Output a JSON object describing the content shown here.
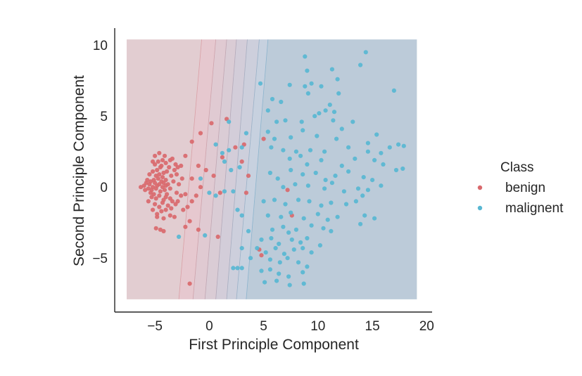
{
  "chart_data": {
    "type": "scatter",
    "title": "",
    "xlabel": "First Principle Component",
    "ylabel": "Second Principle Component",
    "xlim": [
      -8.7,
      20.5
    ],
    "ylim": [
      -8.8,
      11.2
    ],
    "xticks": [
      -5,
      0,
      5,
      10,
      15,
      20
    ],
    "yticks": [
      -5,
      0,
      5,
      10
    ],
    "xtick_labels": [
      "−5",
      "0",
      "5",
      "10",
      "15",
      "20"
    ],
    "ytick_labels": [
      "−5",
      "0",
      "5",
      "10"
    ],
    "grid": false,
    "legend": {
      "title": "Class",
      "placement": "right"
    },
    "decision_region": {
      "x_range": [
        -7.6,
        19.1
      ],
      "y_range": [
        -7.9,
        10.4
      ],
      "class_colors": [
        "#d37b7e",
        "#4aa8c8"
      ],
      "boundary_levels": [
        0.05,
        0.2,
        0.35,
        0.5,
        0.65,
        0.8,
        0.95
      ],
      "boundary_at_y_bottom": [
        -2.8,
        -1.5,
        -0.4,
        0.6,
        1.6,
        2.5,
        3.4
      ],
      "boundary_at_y_top": [
        -0.7,
        0.6,
        1.6,
        2.5,
        3.5,
        4.6,
        5.4
      ],
      "background_color": "#b9c7d6"
    },
    "series": [
      {
        "name": "benign",
        "color": "#d9696c",
        "points": [
          [
            -6.3,
            0.0
          ],
          [
            -6.0,
            0.1
          ],
          [
            -5.8,
            0.3
          ],
          [
            -5.6,
            -0.1
          ],
          [
            -5.5,
            0.2
          ],
          [
            -5.4,
            0.4
          ],
          [
            -5.3,
            -0.2
          ],
          [
            -5.2,
            0.0
          ],
          [
            -5.1,
            0.5
          ],
          [
            -5.0,
            0.3
          ],
          [
            -4.9,
            -0.1
          ],
          [
            -4.8,
            0.1
          ],
          [
            -4.7,
            0.6
          ],
          [
            -4.6,
            0.2
          ],
          [
            -4.5,
            -0.3
          ],
          [
            -4.4,
            0.4
          ],
          [
            -4.3,
            0.0
          ],
          [
            -4.2,
            0.3
          ],
          [
            -4.1,
            -0.2
          ],
          [
            -4.0,
            0.1
          ],
          [
            -5.9,
            -0.2
          ],
          [
            -5.7,
            0.5
          ],
          [
            -5.4,
            -0.4
          ],
          [
            -5.1,
            -0.5
          ],
          [
            -4.9,
            0.8
          ],
          [
            -4.6,
            0.9
          ],
          [
            -4.3,
            0.7
          ],
          [
            -4.0,
            0.5
          ],
          [
            -3.8,
            0.2
          ],
          [
            -3.6,
            -0.1
          ],
          [
            -5.5,
            0.9
          ],
          [
            -5.2,
            1.1
          ],
          [
            -4.8,
            1.2
          ],
          [
            -4.5,
            1.4
          ],
          [
            -4.2,
            1.0
          ],
          [
            -3.9,
            1.1
          ],
          [
            -3.5,
            0.8
          ],
          [
            -3.3,
            0.4
          ],
          [
            -5.0,
            1.6
          ],
          [
            -4.7,
            1.8
          ],
          [
            -4.4,
            1.5
          ],
          [
            -4.0,
            1.7
          ],
          [
            -3.7,
            1.4
          ],
          [
            -3.2,
            1.2
          ],
          [
            -3.0,
            0.9
          ],
          [
            -4.9,
            -0.8
          ],
          [
            -4.6,
            -0.6
          ],
          [
            -4.2,
            -0.9
          ],
          [
            -3.9,
            -0.5
          ],
          [
            -3.6,
            -0.8
          ],
          [
            -5.3,
            -0.7
          ],
          [
            -5.0,
            -1.2
          ],
          [
            -4.6,
            -1.4
          ],
          [
            -4.3,
            -1.1
          ],
          [
            -3.8,
            -1.3
          ],
          [
            -3.4,
            -1.0
          ],
          [
            -5.6,
            -1.0
          ],
          [
            -5.2,
            -1.6
          ],
          [
            -4.8,
            -1.9
          ],
          [
            -4.4,
            -1.7
          ],
          [
            -4.0,
            -1.6
          ],
          [
            -3.5,
            -1.5
          ],
          [
            -3.1,
            -1.2
          ],
          [
            -5.0,
            2.2
          ],
          [
            -4.6,
            2.4
          ],
          [
            -4.1,
            2.2
          ],
          [
            -3.6,
            1.9
          ],
          [
            -3.1,
            1.6
          ],
          [
            -2.9,
            1.4
          ],
          [
            -2.6,
            1.5
          ],
          [
            -2.8,
            0.2
          ],
          [
            -3.0,
            -0.4
          ],
          [
            -2.6,
            -0.6
          ],
          [
            -2.9,
            -1.0
          ],
          [
            -2.5,
            0.6
          ],
          [
            -4.8,
            -2.1
          ],
          [
            -4.2,
            -2.2
          ],
          [
            -3.6,
            -2.0
          ],
          [
            -3.2,
            -2.1
          ],
          [
            -2.4,
            -1.6
          ],
          [
            -2.0,
            -1.4
          ],
          [
            -1.6,
            -1.0
          ],
          [
            -1.2,
            -0.6
          ],
          [
            -0.8,
            0.0
          ],
          [
            -1.6,
            0.6
          ],
          [
            -2.2,
            -0.5
          ],
          [
            -2.2,
            2.2
          ],
          [
            -1.6,
            3.2
          ],
          [
            -0.8,
            3.8
          ],
          [
            -1.0,
            1.5
          ],
          [
            -0.3,
            1.2
          ],
          [
            0.2,
            4.5
          ],
          [
            1.2,
            2.1
          ],
          [
            1.6,
            4.8
          ],
          [
            0.4,
            0.8
          ],
          [
            1.0,
            -0.4
          ],
          [
            -4.9,
            -2.9
          ],
          [
            -4.5,
            -3.0
          ],
          [
            -4.2,
            -3.1
          ],
          [
            -2.2,
            -2.8
          ],
          [
            -1.8,
            -2.4
          ],
          [
            -1.0,
            -3.0
          ],
          [
            0.8,
            -3.5
          ],
          [
            2.4,
            2.8
          ],
          [
            3.2,
            3.0
          ],
          [
            3.0,
            1.8
          ],
          [
            3.6,
            0.8
          ],
          [
            3.4,
            -0.4
          ],
          [
            5.0,
            3.4
          ],
          [
            7.2,
            -0.2
          ],
          [
            7.6,
            -2.0
          ],
          [
            4.6,
            -4.4
          ],
          [
            4.8,
            -4.8
          ],
          [
            -1.8,
            -6.8
          ],
          [
            -5.2,
            1.8
          ],
          [
            -4.3,
            1.9
          ],
          [
            -3.4,
            2.0
          ],
          [
            -4.0,
            -0.7
          ]
        ]
      },
      {
        "name": "malignent",
        "color": "#58b7d2",
        "points": [
          [
            8.8,
            9.2
          ],
          [
            14.4,
            9.5
          ],
          [
            13.9,
            8.6
          ],
          [
            9.0,
            8.2
          ],
          [
            11.3,
            8.3
          ],
          [
            11.8,
            7.6
          ],
          [
            4.7,
            7.3
          ],
          [
            7.4,
            7.2
          ],
          [
            8.8,
            7.1
          ],
          [
            9.4,
            7.3
          ],
          [
            10.3,
            7.1
          ],
          [
            17.0,
            6.8
          ],
          [
            11.9,
            6.6
          ],
          [
            5.8,
            6.2
          ],
          [
            6.6,
            6.0
          ],
          [
            9.1,
            6.6
          ],
          [
            11.1,
            5.8
          ],
          [
            10.7,
            5.4
          ],
          [
            11.5,
            5.3
          ],
          [
            10.1,
            5.2
          ],
          [
            5.4,
            5.4
          ],
          [
            6.2,
            4.6
          ],
          [
            7.0,
            4.7
          ],
          [
            8.5,
            4.6
          ],
          [
            9.7,
            5.0
          ],
          [
            11.4,
            4.7
          ],
          [
            13.2,
            4.6
          ],
          [
            12.2,
            4.1
          ],
          [
            5.4,
            3.9
          ],
          [
            6.0,
            3.4
          ],
          [
            7.5,
            3.5
          ],
          [
            8.6,
            4.0
          ],
          [
            9.9,
            3.6
          ],
          [
            11.7,
            3.4
          ],
          [
            14.6,
            3.1
          ],
          [
            15.4,
            3.7
          ],
          [
            5.7,
            2.8
          ],
          [
            6.8,
            2.6
          ],
          [
            8.0,
            2.5
          ],
          [
            9.3,
            2.6
          ],
          [
            10.6,
            2.5
          ],
          [
            12.8,
            2.8
          ],
          [
            14.6,
            2.5
          ],
          [
            15.8,
            2.4
          ],
          [
            17.4,
            3.0
          ],
          [
            17.9,
            2.9
          ],
          [
            16.6,
            2.8
          ],
          [
            7.4,
            2.0
          ],
          [
            8.4,
            2.2
          ],
          [
            9.0,
            1.6
          ],
          [
            10.3,
            1.9
          ],
          [
            12.2,
            1.5
          ],
          [
            13.4,
            2.0
          ],
          [
            15.2,
            1.9
          ],
          [
            16.0,
            1.6
          ],
          [
            17.8,
            1.3
          ],
          [
            17.2,
            1.2
          ],
          [
            5.6,
            1.0
          ],
          [
            6.3,
            0.6
          ],
          [
            7.5,
            1.2
          ],
          [
            8.6,
            0.9
          ],
          [
            9.8,
            1.0
          ],
          [
            10.7,
            0.5
          ],
          [
            11.6,
            0.8
          ],
          [
            12.8,
            1.1
          ],
          [
            14.2,
            0.7
          ],
          [
            15.0,
            0.5
          ],
          [
            15.8,
            0.1
          ],
          [
            6.8,
            0.0
          ],
          [
            7.9,
            0.2
          ],
          [
            9.1,
            0.1
          ],
          [
            10.6,
            -0.1
          ],
          [
            11.3,
            0.3
          ],
          [
            12.4,
            -0.3
          ],
          [
            13.7,
            -0.1
          ],
          [
            14.6,
            -0.2
          ],
          [
            5.0,
            -1.0
          ],
          [
            6.0,
            -0.9
          ],
          [
            7.0,
            -1.2
          ],
          [
            8.2,
            -0.9
          ],
          [
            9.2,
            -1.0
          ],
          [
            10.3,
            -1.3
          ],
          [
            11.2,
            -1.1
          ],
          [
            12.6,
            -1.2
          ],
          [
            13.5,
            -1.0
          ],
          [
            14.1,
            -0.6
          ],
          [
            5.4,
            -2.0
          ],
          [
            6.6,
            -2.1
          ],
          [
            7.5,
            -1.8
          ],
          [
            8.7,
            -2.2
          ],
          [
            10.0,
            -1.9
          ],
          [
            10.9,
            -2.3
          ],
          [
            11.8,
            -2.1
          ],
          [
            14.3,
            -2.0
          ],
          [
            15.2,
            -2.2
          ],
          [
            5.8,
            -3.0
          ],
          [
            6.8,
            -2.8
          ],
          [
            7.3,
            -3.2
          ],
          [
            8.0,
            -3.0
          ],
          [
            9.4,
            -2.7
          ],
          [
            10.5,
            -2.9
          ],
          [
            11.2,
            -3.1
          ],
          [
            13.9,
            -2.6
          ],
          [
            4.8,
            -3.7
          ],
          [
            5.7,
            -3.6
          ],
          [
            6.4,
            -4.0
          ],
          [
            7.6,
            -3.7
          ],
          [
            8.4,
            -3.9
          ],
          [
            9.0,
            -3.6
          ],
          [
            10.2,
            -4.1
          ],
          [
            4.4,
            -4.3
          ],
          [
            5.2,
            -4.6
          ],
          [
            6.1,
            -4.3
          ],
          [
            6.9,
            -4.7
          ],
          [
            7.8,
            -4.4
          ],
          [
            8.6,
            -4.3
          ],
          [
            9.4,
            -4.6
          ],
          [
            5.6,
            -5.1
          ],
          [
            6.5,
            -5.3
          ],
          [
            7.2,
            -5.0
          ],
          [
            8.2,
            -5.3
          ],
          [
            9.0,
            -5.6
          ],
          [
            4.8,
            -5.9
          ],
          [
            5.6,
            -5.8
          ],
          [
            6.4,
            -6.1
          ],
          [
            7.3,
            -6.3
          ],
          [
            8.6,
            -6.0
          ],
          [
            5.1,
            -6.7
          ],
          [
            6.2,
            -6.6
          ],
          [
            7.4,
            -6.9
          ],
          [
            8.7,
            -6.8
          ],
          [
            2.2,
            -5.7
          ],
          [
            2.6,
            -5.7
          ],
          [
            3.0,
            -5.7
          ],
          [
            3.0,
            -4.3
          ],
          [
            3.8,
            -5.0
          ],
          [
            3.6,
            -3.1
          ],
          [
            3.0,
            -2.0
          ],
          [
            2.6,
            -1.6
          ],
          [
            2.2,
            -0.3
          ],
          [
            1.4,
            -0.3
          ],
          [
            0.6,
            -0.6
          ],
          [
            0.0,
            -0.4
          ],
          [
            -0.8,
            0.6
          ],
          [
            0.6,
            3.0
          ],
          [
            1.4,
            1.8
          ],
          [
            2.0,
            1.2
          ],
          [
            2.8,
            1.4
          ],
          [
            1.8,
            2.6
          ],
          [
            3.0,
            2.8
          ],
          [
            -0.4,
            -3.4
          ],
          [
            -2.8,
            -3.5
          ],
          [
            1.2,
            2.4
          ],
          [
            1.8,
            4.6
          ],
          [
            3.4,
            3.8
          ]
        ]
      }
    ]
  }
}
